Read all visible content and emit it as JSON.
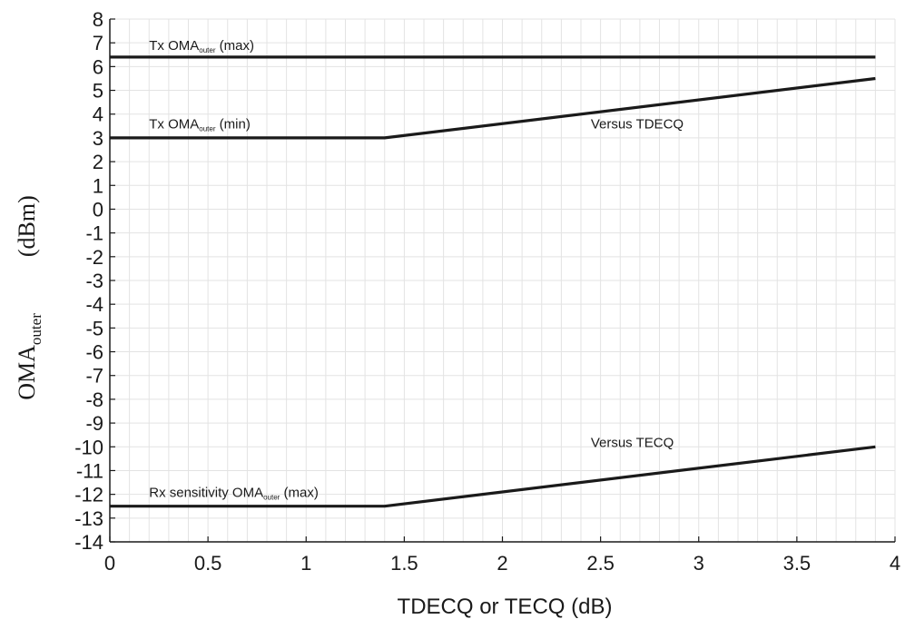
{
  "chart_data": {
    "type": "line",
    "title": "",
    "xlabel": "TDECQ or TECQ (dB)",
    "ylabel": {
      "main": "OMA",
      "sub": "outer",
      "unit": "(dBm)"
    },
    "xlim": [
      0,
      4
    ],
    "ylim": [
      -14,
      8
    ],
    "x_ticks": [
      {
        "value": 0,
        "label": "0"
      },
      {
        "value": 0.5,
        "label": "0.5"
      },
      {
        "value": 1,
        "label": "1"
      },
      {
        "value": 1.5,
        "label": "1.5"
      },
      {
        "value": 2,
        "label": "2"
      },
      {
        "value": 2.5,
        "label": "2.5"
      },
      {
        "value": 3,
        "label": "3"
      },
      {
        "value": 3.5,
        "label": "3.5"
      },
      {
        "value": 4,
        "label": "4"
      }
    ],
    "y_ticks": [
      8,
      7,
      6,
      5,
      4,
      3,
      2,
      1,
      0,
      -1,
      -2,
      -3,
      -4,
      -5,
      -6,
      -7,
      -8,
      -9,
      -10,
      -11,
      -12,
      -13,
      -14
    ],
    "grid": true,
    "line_color": "#1a1a1a",
    "series": [
      {
        "points": [
          [
            0,
            6.4
          ],
          [
            3.9,
            6.4
          ]
        ]
      },
      {
        "points": [
          [
            0,
            3.0
          ],
          [
            1.4,
            3.0
          ],
          [
            3.9,
            5.5
          ]
        ]
      },
      {
        "points": [
          [
            0,
            -12.5
          ],
          [
            1.4,
            -12.5
          ],
          [
            3.9,
            -10.0
          ]
        ]
      }
    ],
    "annotations": [
      {
        "text": "Tx OMA",
        "sub": "outer",
        "suffix": " (max)",
        "x": 0.2,
        "y": 6.7
      },
      {
        "text": "Tx OMA",
        "sub": "outer",
        "suffix": " (min)",
        "x": 0.2,
        "y": 3.4
      },
      {
        "text": "Versus TDECQ",
        "sub": "",
        "suffix": "",
        "x": 2.45,
        "y": 3.4
      },
      {
        "text": "Rx sensitivity  OMA",
        "sub": "outer",
        "suffix": " (max)",
        "x": 0.2,
        "y": -12.1
      },
      {
        "text": "Versus TECQ",
        "sub": "",
        "suffix": "",
        "x": 2.45,
        "y": -10.0
      }
    ]
  }
}
